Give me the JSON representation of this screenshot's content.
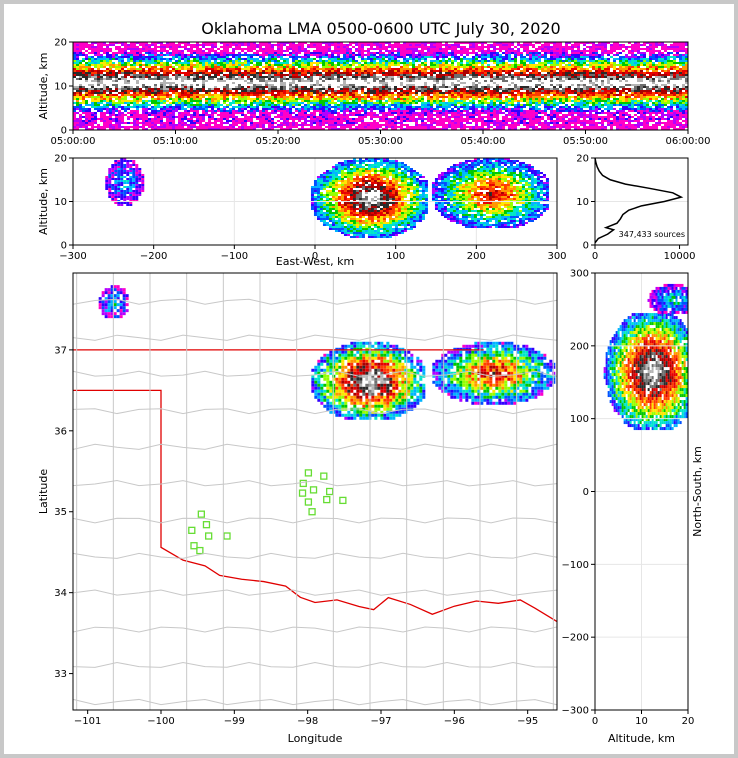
{
  "title": "Oklahoma LMA 0500-0600 UTC July 30, 2020",
  "chart_data": [
    {
      "id": "time-height",
      "type": "heatmap",
      "ylabel": "Altitude, km",
      "xlim": [
        0,
        60
      ],
      "ylim": [
        0,
        20
      ],
      "x_ticks": [
        0,
        10,
        20,
        30,
        40,
        50,
        60
      ],
      "x_tick_labels": [
        "05:00:00",
        "05:10:00",
        "05:20:00",
        "05:30:00",
        "05:40:00",
        "05:50:00",
        "06:00:00"
      ],
      "y_ticks": [
        0,
        10,
        20
      ],
      "y_tick_labels": [
        "0",
        "10",
        "20"
      ],
      "core_altitude_km": [
        8,
        14
      ]
    },
    {
      "id": "ew-altitude",
      "type": "heatmap",
      "xlabel": "East-West, km",
      "ylabel": "Altitude, km",
      "xlim": [
        -300,
        300
      ],
      "ylim": [
        0,
        20
      ],
      "x_ticks": [
        -300,
        -200,
        -100,
        0,
        100,
        200,
        300
      ],
      "x_tick_labels": [
        "−300",
        "−200",
        "−100",
        "0",
        "100",
        "200",
        "300"
      ],
      "y_ticks": [
        0,
        10,
        20
      ],
      "y_tick_labels": [
        "0",
        "10",
        "20"
      ],
      "clusters": [
        {
          "x": [
            -260,
            -215
          ],
          "z": [
            9,
            20
          ],
          "intensity": 0.25
        },
        {
          "x": [
            -5,
            140
          ],
          "z": [
            2,
            20
          ],
          "intensity": 0.95
        },
        {
          "x": [
            145,
            290
          ],
          "z": [
            4,
            20
          ],
          "intensity": 0.7
        }
      ]
    },
    {
      "id": "altitude-histogram",
      "type": "line",
      "xlim": [
        0,
        11000
      ],
      "ylim": [
        0,
        20
      ],
      "x_ticks": [
        0,
        10000
      ],
      "x_tick_labels": [
        "0",
        "10000"
      ],
      "y_ticks": [
        0,
        10,
        20
      ],
      "y_tick_labels": [
        "0",
        "10",
        "20"
      ],
      "annotation": "347,433 sources",
      "counts": [
        {
          "z": 0.5,
          "n": 0
        },
        {
          "z": 1.5,
          "n": 400
        },
        {
          "z": 2.5,
          "n": 1500
        },
        {
          "z": 3.5,
          "n": 2200
        },
        {
          "z": 4.0,
          "n": 1300
        },
        {
          "z": 5.0,
          "n": 2600
        },
        {
          "z": 6.0,
          "n": 3000
        },
        {
          "z": 7.0,
          "n": 3300
        },
        {
          "z": 8.0,
          "n": 4000
        },
        {
          "z": 9.0,
          "n": 5500
        },
        {
          "z": 10.0,
          "n": 8200
        },
        {
          "z": 11.0,
          "n": 10200
        },
        {
          "z": 12.0,
          "n": 9200
        },
        {
          "z": 13.0,
          "n": 6500
        },
        {
          "z": 14.0,
          "n": 3600
        },
        {
          "z": 15.0,
          "n": 1800
        },
        {
          "z": 16.0,
          "n": 900
        },
        {
          "z": 17.0,
          "n": 500
        },
        {
          "z": 18.0,
          "n": 250
        },
        {
          "z": 19.0,
          "n": 100
        },
        {
          "z": 20.0,
          "n": 0
        }
      ]
    },
    {
      "id": "plan-view",
      "type": "heatmap",
      "xlabel": "Longitude",
      "ylabel": "Latitude",
      "xlim": [
        -101.2,
        -94.6
      ],
      "ylim": [
        32.55,
        37.95
      ],
      "x_ticks": [
        -101,
        -100,
        -99,
        -98,
        -97,
        -96,
        -95
      ],
      "x_tick_labels": [
        "−101",
        "−100",
        "−99",
        "−98",
        "−97",
        "−96",
        "−95"
      ],
      "y_ticks": [
        33,
        34,
        35,
        36,
        37
      ],
      "y_tick_labels": [
        "33",
        "34",
        "35",
        "36",
        "37"
      ],
      "clusters": [
        {
          "lon": [
            -100.85,
            -100.45
          ],
          "lat": [
            37.4,
            37.8
          ],
          "intensity": 0.25
        },
        {
          "lon": [
            -97.95,
            -96.4
          ],
          "lat": [
            36.15,
            37.1
          ],
          "intensity": 0.95
        },
        {
          "lon": [
            -96.3,
            -94.65
          ],
          "lat": [
            36.35,
            37.1
          ],
          "intensity": 0.7
        }
      ],
      "stations": [
        {
          "lon": -99.45,
          "lat": 34.97
        },
        {
          "lon": -99.58,
          "lat": 34.77
        },
        {
          "lon": -99.38,
          "lat": 34.84
        },
        {
          "lon": -99.35,
          "lat": 34.7
        },
        {
          "lon": -99.55,
          "lat": 34.58
        },
        {
          "lon": -99.47,
          "lat": 34.52
        },
        {
          "lon": -99.1,
          "lat": 34.7
        },
        {
          "lon": -97.99,
          "lat": 35.48
        },
        {
          "lon": -97.78,
          "lat": 35.44
        },
        {
          "lon": -98.06,
          "lat": 35.35
        },
        {
          "lon": -97.92,
          "lat": 35.27
        },
        {
          "lon": -97.7,
          "lat": 35.25
        },
        {
          "lon": -98.07,
          "lat": 35.23
        },
        {
          "lon": -97.99,
          "lat": 35.12
        },
        {
          "lon": -97.74,
          "lat": 35.15
        },
        {
          "lon": -97.52,
          "lat": 35.14
        },
        {
          "lon": -97.94,
          "lat": 35.0
        }
      ]
    },
    {
      "id": "altitude-ns",
      "type": "heatmap",
      "xlabel": "Altitude, km",
      "ylabel": "North-South, km",
      "xlim": [
        0,
        20
      ],
      "ylim": [
        -300,
        300
      ],
      "x_ticks": [
        0,
        10,
        20
      ],
      "x_tick_labels": [
        "0",
        "10",
        "20"
      ],
      "y_ticks": [
        -300,
        -200,
        -100,
        0,
        100,
        200,
        300
      ],
      "y_tick_labels": [
        "−300",
        "−200",
        "−100",
        "0",
        "100",
        "200",
        "300"
      ],
      "clusters": [
        {
          "z": [
            1,
            20
          ],
          "y": [
            88,
            245
          ],
          "intensity": 0.95
        },
        {
          "z": [
            10,
            20
          ],
          "y": [
            245,
            285
          ],
          "intensity": 0.3
        }
      ]
    }
  ]
}
